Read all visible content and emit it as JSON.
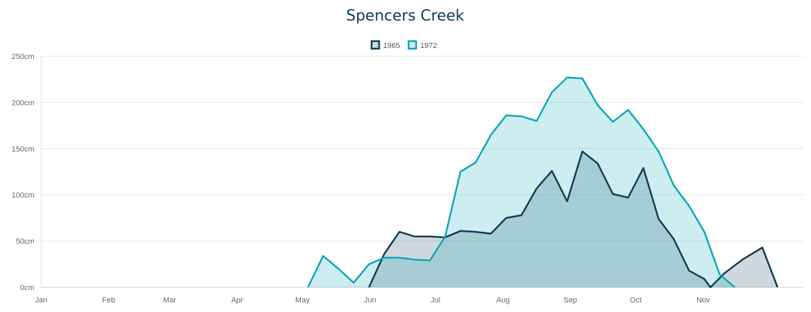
{
  "chart_data": {
    "type": "area",
    "title": "Spencers Creek",
    "xlabel": "",
    "ylabel": "",
    "x_ticks": [
      "Jan",
      "Feb",
      "Mar",
      "Apr",
      "May",
      "Jun",
      "Jul",
      "Aug",
      "Sep",
      "Oct",
      "Nov"
    ],
    "y_ticks": [
      "0cm",
      "50cm",
      "100cm",
      "150cm",
      "200cm",
      "250cm"
    ],
    "ylim": [
      0,
      250
    ],
    "xlim_weeks": [
      0,
      50
    ],
    "grid": true,
    "legend_position": "top-center",
    "series": [
      {
        "name": "1965",
        "color": "#0f3b57",
        "fill": "rgba(15,59,87,0.20)",
        "points": [
          [
            21.5,
            0
          ],
          [
            22.5,
            36
          ],
          [
            23.5,
            60
          ],
          [
            24.5,
            55
          ],
          [
            25.5,
            55
          ],
          [
            26.5,
            54
          ],
          [
            27.5,
            61
          ],
          [
            28.5,
            60
          ],
          [
            29.5,
            58
          ],
          [
            30.5,
            75
          ],
          [
            31.5,
            78
          ],
          [
            32.5,
            107
          ],
          [
            33.5,
            126
          ],
          [
            34.5,
            93
          ],
          [
            35.5,
            147
          ],
          [
            36.5,
            134
          ],
          [
            37.5,
            101
          ],
          [
            38.5,
            97
          ],
          [
            39.5,
            129
          ],
          [
            40.5,
            74
          ],
          [
            41.5,
            52
          ],
          [
            42.5,
            18
          ],
          [
            43.5,
            9
          ],
          [
            43.9,
            0
          ],
          [
            44.8,
            15
          ],
          [
            46.0,
            30
          ],
          [
            47.3,
            43
          ],
          [
            48.3,
            0
          ]
        ]
      },
      {
        "name": "1972",
        "color": "#0aa7b5",
        "fill": "rgba(10,167,181,0.20)",
        "points": [
          [
            17.5,
            0
          ],
          [
            18.5,
            34
          ],
          [
            19.5,
            20
          ],
          [
            20.5,
            5
          ],
          [
            21.5,
            25
          ],
          [
            22.5,
            32
          ],
          [
            23.5,
            32
          ],
          [
            24.5,
            30
          ],
          [
            25.5,
            29
          ],
          [
            26.5,
            55
          ],
          [
            27.5,
            125
          ],
          [
            28.5,
            135
          ],
          [
            29.5,
            165
          ],
          [
            30.5,
            186
          ],
          [
            31.5,
            185
          ],
          [
            32.5,
            180
          ],
          [
            33.5,
            211
          ],
          [
            34.5,
            227
          ],
          [
            35.5,
            226
          ],
          [
            36.5,
            197
          ],
          [
            37.5,
            179
          ],
          [
            38.5,
            192
          ],
          [
            39.5,
            171
          ],
          [
            40.5,
            147
          ],
          [
            41.5,
            110
          ],
          [
            42.5,
            88
          ],
          [
            43.5,
            60
          ],
          [
            44.5,
            14
          ],
          [
            45.5,
            0
          ]
        ]
      }
    ]
  }
}
